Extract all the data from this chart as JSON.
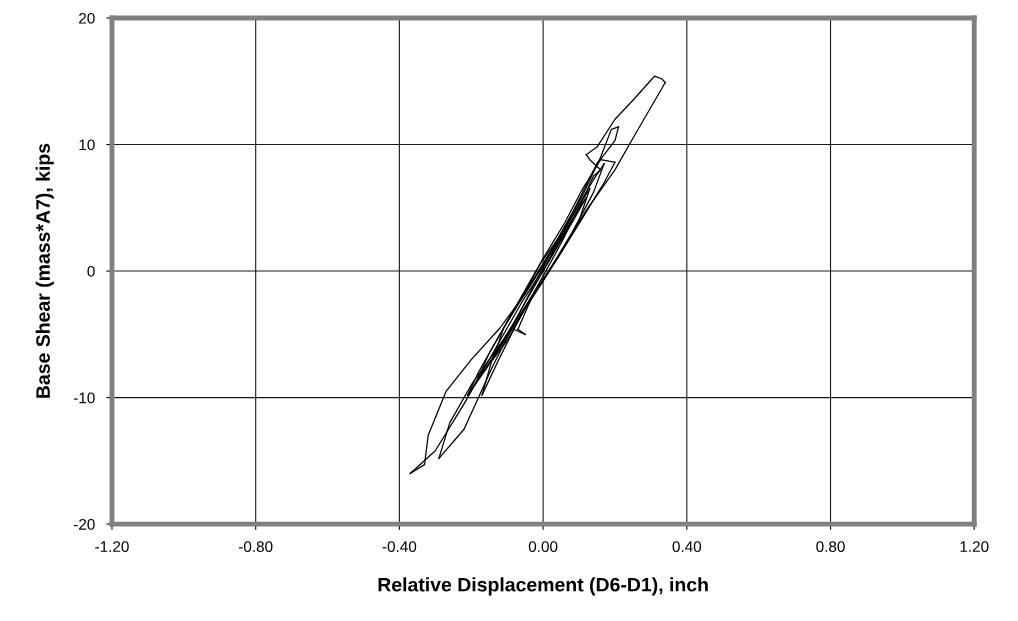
{
  "chart_data": {
    "type": "line",
    "xlabel": "Relative Displacement (D6-D1), inch",
    "ylabel": "Base Shear (mass*A7), kips",
    "xlim": [
      -1.2,
      1.2
    ],
    "ylim": [
      -20,
      20
    ],
    "xticks": [
      {
        "value": -1.2,
        "label": "-1.20"
      },
      {
        "value": -0.8,
        "label": "-0.80"
      },
      {
        "value": -0.4,
        "label": "-0.40"
      },
      {
        "value": 0,
        "label": "0.00"
      },
      {
        "value": 0.4,
        "label": "0.40"
      },
      {
        "value": 0.8,
        "label": "0.80"
      },
      {
        "value": 1.2,
        "label": "1.20"
      }
    ],
    "yticks": [
      -20,
      -10,
      0,
      10,
      20
    ],
    "grid": true,
    "marker": "none",
    "line_style": "solid",
    "series": [
      {
        "color": "#000000",
        "x": [
          0,
          0.05,
          0.1,
          0.13
        ],
        "values": [
          0,
          2.8,
          5.2,
          6.5
        ]
      },
      {
        "color": "#000000",
        "x": [
          0.13,
          0.1,
          0.05,
          0,
          -0.05,
          -0.1,
          -0.14
        ],
        "values": [
          6.5,
          4.0,
          1.5,
          -0.8,
          -3.0,
          -5.5,
          -7.0
        ]
      },
      {
        "color": "#000000",
        "x": [
          -0.14,
          -0.11,
          -0.06,
          -0.01,
          0.04,
          0.09,
          0.14,
          0.17
        ],
        "values": [
          -7.0,
          -4.5,
          -2.0,
          0.5,
          2.5,
          4.8,
          7.2,
          8.5
        ]
      },
      {
        "color": "#000000",
        "x": [
          0.17,
          0.14,
          0.08,
          0.02,
          -0.04,
          -0.1,
          -0.16,
          -0.19
        ],
        "values": [
          8.5,
          6.2,
          3.0,
          0.2,
          -2.5,
          -5.2,
          -7.8,
          -9.0
        ]
      },
      {
        "color": "#000000",
        "x": [
          -0.19,
          -0.15,
          -0.09,
          -0.03,
          0.03,
          0.08,
          0.12,
          0.15,
          0.17,
          0.2,
          0.21
        ],
        "values": [
          -9.0,
          -6.5,
          -3.5,
          -0.8,
          2.0,
          4.5,
          6.8,
          8.5,
          9.2,
          10.3,
          11.4
        ]
      },
      {
        "color": "#000000",
        "x": [
          0.21,
          0.19,
          0.16,
          0.11,
          0.05,
          0,
          -0.06,
          -0.12,
          -0.18,
          -0.21
        ],
        "values": [
          11.4,
          11.2,
          9.0,
          6.0,
          3.0,
          0.3,
          -3.0,
          -6.0,
          -8.5,
          -9.8
        ]
      },
      {
        "color": "#000000",
        "x": [
          -0.21,
          -0.18,
          -0.12,
          -0.06,
          0.0,
          0.06,
          0.11,
          0.16,
          0.2
        ],
        "values": [
          -9.8,
          -8.0,
          -5.0,
          -2.2,
          1.0,
          3.8,
          6.5,
          8.8,
          8.6
        ]
      },
      {
        "color": "#000000",
        "x": [
          0.2,
          0.17,
          0.11,
          0.04,
          -0.03,
          -0.07
        ],
        "values": [
          8.6,
          7.0,
          4.2,
          1.0,
          -2.0,
          -4.6
        ]
      },
      {
        "color": "#000000",
        "x": [
          -0.07,
          -0.05
        ],
        "values": [
          -4.6,
          -5.0
        ]
      },
      {
        "color": "#000000",
        "x": [
          -0.05,
          -0.09,
          -0.14,
          -0.17
        ],
        "values": [
          -5.0,
          -4.5,
          -6.8,
          -9.8
        ]
      },
      {
        "color": "#000000",
        "x": [
          -0.17,
          -0.12,
          -0.06,
          0.0,
          0.05,
          0.1,
          0.14,
          0.16
        ],
        "values": [
          -9.8,
          -6.8,
          -3.4,
          -0.4,
          2.2,
          5.0,
          7.5,
          8.0
        ]
      },
      {
        "color": "#000000",
        "x": [
          0.16,
          0.13,
          0.12
        ],
        "values": [
          8.0,
          8.8,
          9.2
        ]
      },
      {
        "color": "#000000",
        "x": [
          0.12,
          0.15,
          0.2,
          0.25,
          0.31,
          0.33,
          0.34
        ],
        "values": [
          9.2,
          9.8,
          12.0,
          13.5,
          15.4,
          15.2,
          14.9
        ]
      },
      {
        "color": "#000000",
        "x": [
          0.34,
          0.25,
          0.2,
          0.12,
          0.05,
          -0.02,
          -0.1,
          -0.2,
          -0.26,
          -0.29
        ],
        "values": [
          14.9,
          10.5,
          8.0,
          4.8,
          1.5,
          -1.5,
          -5.0,
          -9.0,
          -12.0,
          -14.8
        ]
      },
      {
        "color": "#000000",
        "x": [
          -0.29,
          -0.22,
          -0.14,
          -0.06,
          0.02,
          0.08
        ],
        "values": [
          -14.8,
          -12.5,
          -7.5,
          -3.0,
          1.0,
          4.0
        ]
      },
      {
        "color": "#000000",
        "x": [
          0.08,
          0.03,
          -0.05,
          -0.12,
          -0.2,
          -0.27,
          -0.32,
          -0.33,
          -0.37
        ],
        "values": [
          4.0,
          1.8,
          -1.8,
          -4.5,
          -7.0,
          -9.5,
          -13.0,
          -15.3,
          -16.0
        ]
      },
      {
        "color": "#000000",
        "x": [
          -0.37,
          -0.3,
          -0.22,
          -0.14,
          -0.06,
          0.02,
          0.08,
          0.12
        ],
        "values": [
          -16.0,
          -14.2,
          -10.5,
          -6.5,
          -2.5,
          1.0,
          3.8,
          5.8
        ]
      },
      {
        "color": "#000000",
        "x": [
          0.12,
          0.1,
          0.04,
          0.0
        ],
        "values": [
          5.8,
          5.0,
          2.0,
          0.0
        ]
      }
    ]
  }
}
